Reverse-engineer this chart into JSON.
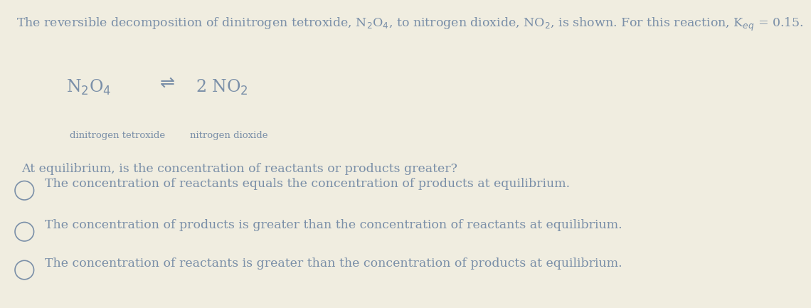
{
  "background_color": "#f0ede0",
  "text_color": "#7a8fa8",
  "font_size_title": 12.5,
  "font_size_reaction": 17,
  "font_size_label": 9.5,
  "font_size_question": 12.5,
  "font_size_option": 12.5,
  "title": "The reversible decomposition of dinitrogen tetroxide, N$_2$O$_4$, to nitrogen dioxide, NO$_2$, is shown. For this reaction, K$_{eq}$ = 0.15.",
  "reaction_left": "N$_2$O$_4$",
  "reaction_arrow": "$\\rightleftharpoons$",
  "reaction_right": "2 NO$_2$",
  "label_left": "dinitrogen tetroxide",
  "label_right": "nitrogen dioxide",
  "question": "At equilibrium, is the concentration of reactants or products greater?",
  "option1": "The concentration of reactants equals the concentration of products at equilibrium.",
  "option2": "The concentration of products is greater than the concentration of reactants at equilibrium.",
  "option3": "The concentration of reactants is greater than the concentration of products at equilibrium.",
  "circle_color": "#7a8fa8"
}
